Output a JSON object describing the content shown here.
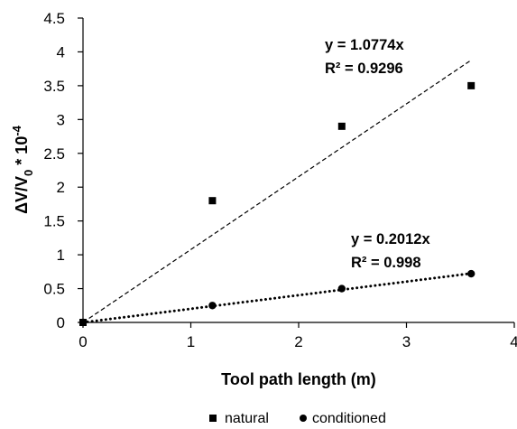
{
  "chart_data": {
    "type": "scatter",
    "xlabel": "Tool path length (m)",
    "ylabel": {
      "main": "ΔV/V",
      "sub": "0",
      "mid": " * 10",
      "sup": "-4"
    },
    "xlim": [
      0,
      4
    ],
    "ylim": [
      0,
      4.5
    ],
    "x_ticks": [
      "0",
      "1",
      "2",
      "3",
      "4"
    ],
    "y_ticks": [
      "0",
      "0.5",
      "1",
      "1.5",
      "2",
      "2.5",
      "3",
      "3.5",
      "4",
      "4.5"
    ],
    "grid": false,
    "legend_position": "bottom",
    "series": [
      {
        "name": "natural",
        "marker": "square",
        "x": [
          0,
          1.2,
          2.4,
          3.6
        ],
        "y": [
          0,
          1.8,
          2.9,
          3.5
        ],
        "trendline": {
          "slope": 1.0774,
          "x_range": [
            0,
            3.6
          ],
          "style": "dashed"
        },
        "equation": "y = 1.0774x",
        "r_squared": "R² = 0.9296"
      },
      {
        "name": "conditioned",
        "marker": "circle",
        "x": [
          0,
          1.2,
          2.4,
          3.6
        ],
        "y": [
          0,
          0.25,
          0.5,
          0.72
        ],
        "trendline": {
          "slope": 0.2012,
          "x_range": [
            0,
            3.6
          ],
          "style": "dotted"
        },
        "equation": "y = 0.2012x",
        "r_squared": "R² = 0.998"
      }
    ]
  }
}
